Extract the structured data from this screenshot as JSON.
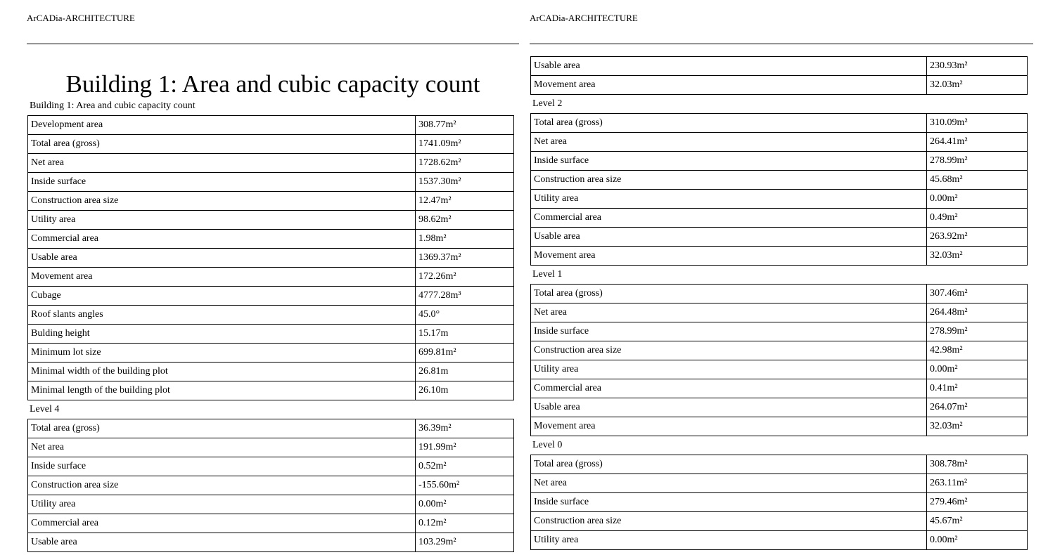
{
  "header": "ArCADia-ARCHITECTURE",
  "title": "Building 1: Area and cubic capacity count",
  "left": {
    "caption": "Building 1: Area and cubic capacity count",
    "summary": [
      {
        "label": "Development area",
        "value": "308.77m²"
      },
      {
        "label": "Total area (gross)",
        "value": "1741.09m²"
      },
      {
        "label": "Net area",
        "value": "1728.62m²"
      },
      {
        "label": "Inside surface",
        "value": "1537.30m²"
      },
      {
        "label": "Construction area size",
        "value": "12.47m²"
      },
      {
        "label": "Utility area",
        "value": "98.62m²"
      },
      {
        "label": "Commercial area",
        "value": "1.98m²"
      },
      {
        "label": "Usable area",
        "value": "1369.37m²"
      },
      {
        "label": "Movement area",
        "value": "172.26m²"
      },
      {
        "label": "Cubage",
        "value": "4777.28m³"
      },
      {
        "label": "Roof slants angles",
        "value": "45.0°"
      },
      {
        "label": "Bulding height",
        "value": "15.17m"
      },
      {
        "label": "Minimum lot size",
        "value": "699.81m²"
      },
      {
        "label": "Minimal width of the building plot",
        "value": "26.81m"
      },
      {
        "label": "Minimal length of the building plot",
        "value": "26.10m"
      }
    ],
    "level4": {
      "label": "Level 4",
      "rows": [
        {
          "label": "Total area (gross)",
          "value": "36.39m²"
        },
        {
          "label": "Net area",
          "value": "191.99m²"
        },
        {
          "label": "Inside surface",
          "value": "0.52m²"
        },
        {
          "label": "Construction area size",
          "value": "-155.60m²"
        },
        {
          "label": "Utility area",
          "value": "0.00m²"
        },
        {
          "label": "Commercial area",
          "value": "0.12m²"
        },
        {
          "label": "Usable area",
          "value": "103.29m²"
        }
      ]
    }
  },
  "right": {
    "continued": [
      {
        "label": "Usable area",
        "value": "230.93m²"
      },
      {
        "label": "Movement area",
        "value": "32.03m²"
      }
    ],
    "levels": [
      {
        "label": "Level 2",
        "rows": [
          {
            "label": "Total area (gross)",
            "value": "310.09m²"
          },
          {
            "label": "Net area",
            "value": "264.41m²"
          },
          {
            "label": "Inside surface",
            "value": "278.99m²"
          },
          {
            "label": "Construction area size",
            "value": "45.68m²"
          },
          {
            "label": "Utility area",
            "value": "0.00m²"
          },
          {
            "label": "Commercial area",
            "value": "0.49m²"
          },
          {
            "label": "Usable area",
            "value": "263.92m²"
          },
          {
            "label": "Movement area",
            "value": "32.03m²"
          }
        ]
      },
      {
        "label": "Level 1",
        "rows": [
          {
            "label": "Total area (gross)",
            "value": "307.46m²"
          },
          {
            "label": "Net area",
            "value": "264.48m²"
          },
          {
            "label": "Inside surface",
            "value": "278.99m²"
          },
          {
            "label": "Construction area size",
            "value": "42.98m²"
          },
          {
            "label": "Utility area",
            "value": "0.00m²"
          },
          {
            "label": "Commercial area",
            "value": "0.41m²"
          },
          {
            "label": "Usable area",
            "value": "264.07m²"
          },
          {
            "label": "Movement area",
            "value": "32.03m²"
          }
        ]
      },
      {
        "label": "Level 0",
        "rows": [
          {
            "label": "Total area (gross)",
            "value": "308.78m²"
          },
          {
            "label": "Net area",
            "value": "263.11m²"
          },
          {
            "label": "Inside surface",
            "value": "279.46m²"
          },
          {
            "label": "Construction area size",
            "value": "45.67m²"
          },
          {
            "label": "Utility area",
            "value": "0.00m²"
          }
        ]
      }
    ]
  }
}
